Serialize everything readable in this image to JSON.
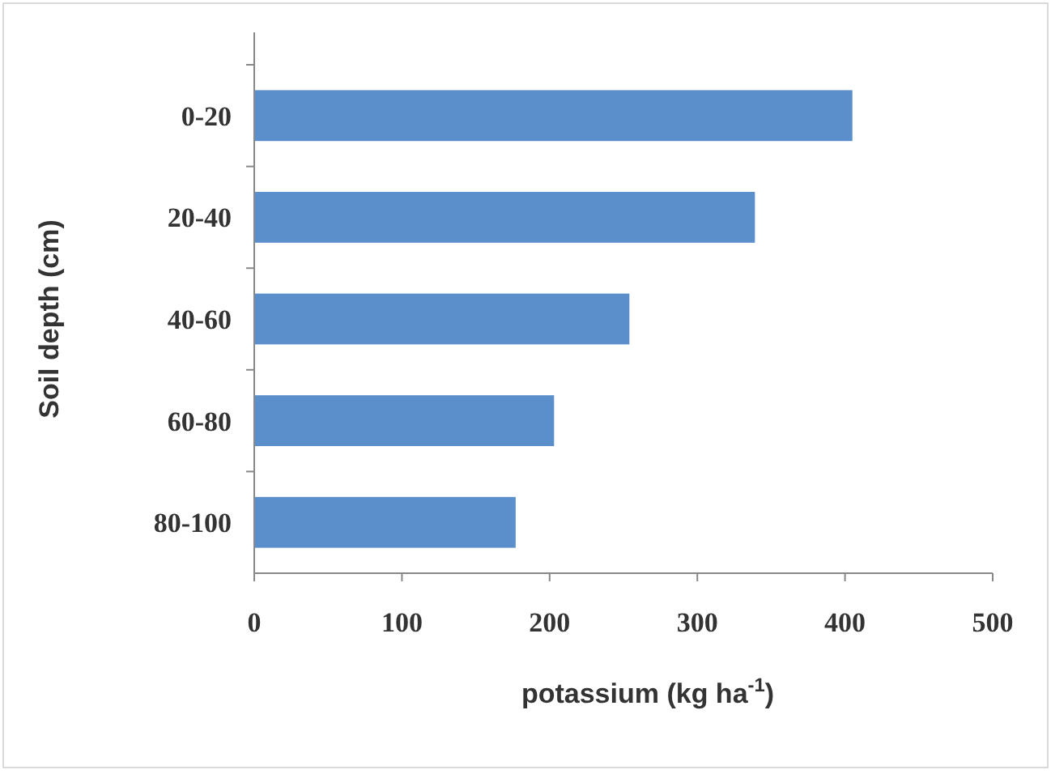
{
  "chart_data": {
    "type": "bar",
    "orientation": "horizontal",
    "categories": [
      "0-20",
      "20-40",
      "40-60",
      "60-80",
      "80-100"
    ],
    "values": [
      405,
      339,
      254,
      203,
      177
    ],
    "color": "#5b8fcc",
    "xlim": [
      0,
      500
    ],
    "xticks": [
      0,
      100,
      200,
      300,
      400,
      500
    ],
    "xlabel": "potassium (kg ha$^{-1}$)",
    "ylabel": "Soil depth (cm)",
    "grid": false
  }
}
